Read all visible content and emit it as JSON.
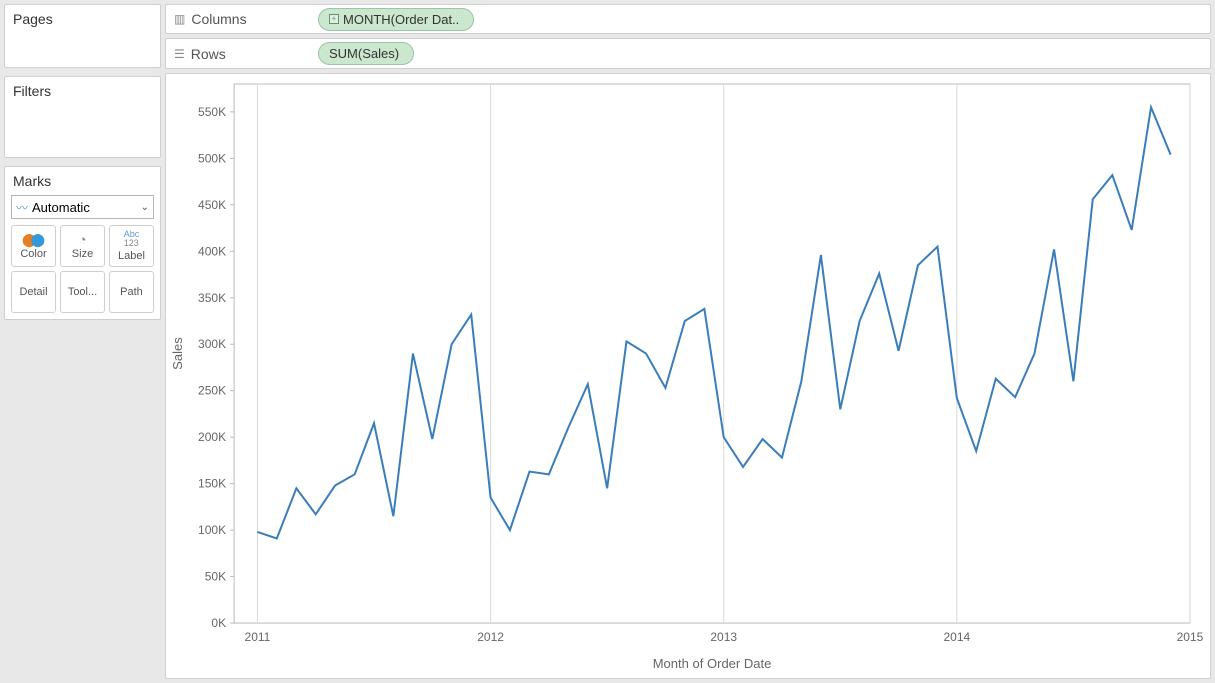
{
  "pages": {
    "title": "Pages"
  },
  "filters": {
    "title": "Filters"
  },
  "marks": {
    "title": "Marks",
    "select_label": "Automatic",
    "buttons": {
      "color": "Color",
      "size": "Size",
      "label": "Label",
      "detail": "Detail",
      "tooltip": "Tool...",
      "path": "Path"
    }
  },
  "shelves": {
    "columns_label": "Columns",
    "rows_label": "Rows",
    "columns_pill": "MONTH(Order Dat..",
    "rows_pill": "SUM(Sales)"
  },
  "pill_colors": {
    "bg": "#cbe7ce",
    "text": "#333333"
  },
  "chart": {
    "type": "line",
    "x_axis_title": "Month of Order Date",
    "y_axis_title": "Sales",
    "y_ticks": [
      0,
      50000,
      100000,
      150000,
      200000,
      250000,
      300000,
      350000,
      400000,
      450000,
      500000,
      550000
    ],
    "y_tick_labels": [
      "0K",
      "50K",
      "100K",
      "150K",
      "200K",
      "250K",
      "300K",
      "350K",
      "400K",
      "450K",
      "500K",
      "550K"
    ],
    "y_min": 0,
    "y_max": 580000,
    "x_year_ticks": [
      2011,
      2012,
      2013,
      2014,
      2015
    ],
    "x_min": 2010.9,
    "x_max": 2015.0,
    "line_color": "#3a7dbb",
    "line_width": 2,
    "grid_color": "#d9d9d9",
    "border_color": "#bababa",
    "background": "#ffffff",
    "label_fontsize": 12,
    "title_fontsize": 13,
    "data": [
      {
        "x": 2011.0,
        "y": 98000
      },
      {
        "x": 2011.083,
        "y": 91000
      },
      {
        "x": 2011.167,
        "y": 145000
      },
      {
        "x": 2011.25,
        "y": 117000
      },
      {
        "x": 2011.333,
        "y": 148000
      },
      {
        "x": 2011.417,
        "y": 160000
      },
      {
        "x": 2011.5,
        "y": 215000
      },
      {
        "x": 2011.583,
        "y": 115000
      },
      {
        "x": 2011.667,
        "y": 290000
      },
      {
        "x": 2011.75,
        "y": 198000
      },
      {
        "x": 2011.833,
        "y": 300000
      },
      {
        "x": 2011.917,
        "y": 332000
      },
      {
        "x": 2012.0,
        "y": 135000
      },
      {
        "x": 2012.083,
        "y": 100000
      },
      {
        "x": 2012.167,
        "y": 163000
      },
      {
        "x": 2012.25,
        "y": 160000
      },
      {
        "x": 2012.333,
        "y": 210000
      },
      {
        "x": 2012.417,
        "y": 257000
      },
      {
        "x": 2012.5,
        "y": 145000
      },
      {
        "x": 2012.583,
        "y": 303000
      },
      {
        "x": 2012.667,
        "y": 290000
      },
      {
        "x": 2012.75,
        "y": 253000
      },
      {
        "x": 2012.833,
        "y": 325000
      },
      {
        "x": 2012.917,
        "y": 338000
      },
      {
        "x": 2013.0,
        "y": 200000
      },
      {
        "x": 2013.083,
        "y": 168000
      },
      {
        "x": 2013.167,
        "y": 198000
      },
      {
        "x": 2013.25,
        "y": 178000
      },
      {
        "x": 2013.333,
        "y": 260000
      },
      {
        "x": 2013.417,
        "y": 396000
      },
      {
        "x": 2013.5,
        "y": 230000
      },
      {
        "x": 2013.583,
        "y": 325000
      },
      {
        "x": 2013.667,
        "y": 376000
      },
      {
        "x": 2013.75,
        "y": 293000
      },
      {
        "x": 2013.833,
        "y": 385000
      },
      {
        "x": 2013.917,
        "y": 405000
      },
      {
        "x": 2014.0,
        "y": 242000
      },
      {
        "x": 2014.083,
        "y": 185000
      },
      {
        "x": 2014.167,
        "y": 263000
      },
      {
        "x": 2014.25,
        "y": 243000
      },
      {
        "x": 2014.333,
        "y": 290000
      },
      {
        "x": 2014.417,
        "y": 402000
      },
      {
        "x": 2014.5,
        "y": 260000
      },
      {
        "x": 2014.583,
        "y": 456000
      },
      {
        "x": 2014.667,
        "y": 482000
      },
      {
        "x": 2014.75,
        "y": 423000
      },
      {
        "x": 2014.833,
        "y": 555000
      },
      {
        "x": 2014.917,
        "y": 504000
      }
    ]
  }
}
